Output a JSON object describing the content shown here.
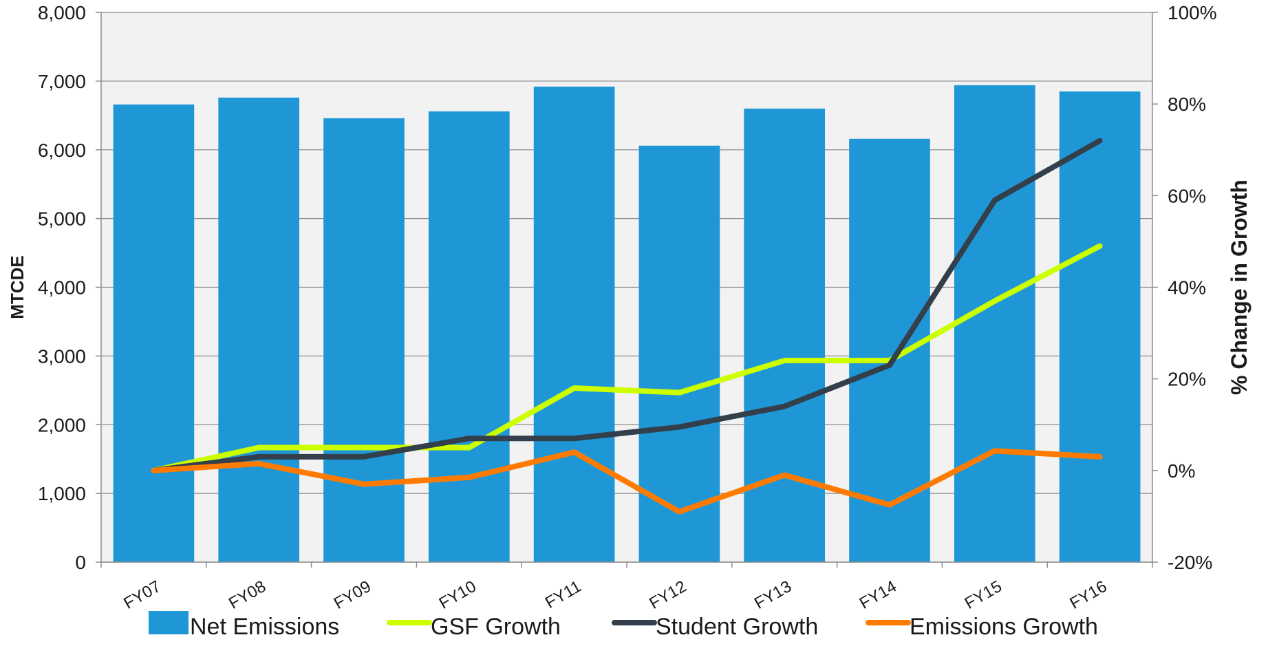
{
  "chart_data": {
    "type": "bar",
    "categories": [
      "FY07",
      "FY08",
      "FY09",
      "FY10",
      "FY11",
      "FY12",
      "FY13",
      "FY14",
      "FY15",
      "FY16"
    ],
    "ylabel": "MTCDE",
    "y2label": "% Change in Growth",
    "ylim": [
      0,
      8000
    ],
    "y2lim": [
      -20,
      100
    ],
    "yticks": [
      0,
      1000,
      2000,
      3000,
      4000,
      5000,
      6000,
      7000,
      8000
    ],
    "ytick_labels": [
      "0",
      "1,000",
      "2,000",
      "3,000",
      "4,000",
      "5,000",
      "6,000",
      "7,000",
      "8,000"
    ],
    "y2ticks": [
      -20,
      0,
      20,
      40,
      60,
      80,
      100
    ],
    "y2tick_labels": [
      "-20%",
      "0%",
      "20%",
      "40%",
      "60%",
      "80%",
      "100%"
    ],
    "series": [
      {
        "name": "Net Emissions",
        "kind": "bar",
        "axis": "left",
        "color": "#1f97d6",
        "values": [
          6660,
          6760,
          6460,
          6560,
          6920,
          6060,
          6600,
          6160,
          6940,
          6850
        ]
      },
      {
        "name": "GSF Growth",
        "kind": "line",
        "axis": "right",
        "color": "#ccff00",
        "values": [
          0,
          5,
          5,
          5,
          18,
          17,
          24,
          24,
          37,
          49
        ]
      },
      {
        "name": "Student Growth",
        "kind": "line",
        "axis": "right",
        "color": "#333f4b",
        "values": [
          0,
          3,
          3,
          7,
          7,
          9.5,
          14,
          23,
          59,
          72
        ]
      },
      {
        "name": "Emissions Growth",
        "kind": "line",
        "axis": "right",
        "color": "#ff7b00",
        "values": [
          0,
          1.5,
          -3,
          -1.5,
          4,
          -9,
          -1,
          -7.5,
          4.3,
          3
        ]
      }
    ],
    "grid": true,
    "legend": "bottom",
    "plot_background": "#f2f2f2"
  }
}
